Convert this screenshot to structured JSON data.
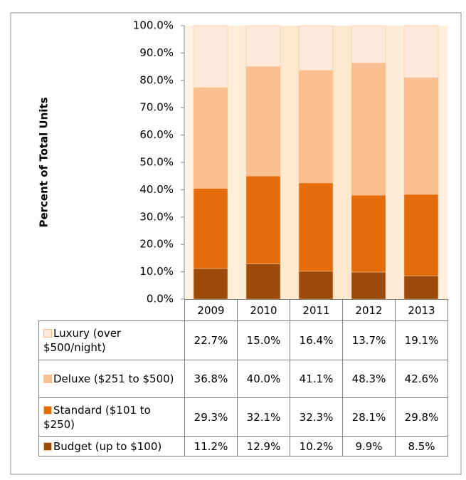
{
  "chart_data": {
    "type": "stacked_bar",
    "y_axis_label": "Percent of Total Units",
    "categories": [
      "2009",
      "2010",
      "2011",
      "2012",
      "2013"
    ],
    "series": [
      {
        "name": "Luxury (over $500/night)",
        "color": "#fde9d9",
        "values": [
          22.7,
          15.0,
          16.4,
          13.7,
          19.1
        ],
        "value_labels": [
          "22.7%",
          "15.0%",
          "16.4%",
          "13.7%",
          "19.1%"
        ]
      },
      {
        "name": "Deluxe ($251 to $500)",
        "color": "#fac090",
        "values": [
          36.8,
          40.0,
          41.1,
          48.3,
          42.6
        ],
        "value_labels": [
          "36.8%",
          "40.0%",
          "41.1%",
          "48.3%",
          "42.6%"
        ]
      },
      {
        "name": "Standard ($101 to $250)",
        "color": "#e46c0a",
        "values": [
          29.3,
          32.1,
          32.3,
          28.1,
          29.8
        ],
        "value_labels": [
          "29.3%",
          "32.1%",
          "32.3%",
          "28.1%",
          "29.8%"
        ]
      },
      {
        "name": "Budget (up to $100)",
        "color": "#9c4a0c",
        "values": [
          11.2,
          12.9,
          10.2,
          9.9,
          8.5
        ],
        "value_labels": [
          "11.2%",
          "12.9%",
          "10.2%",
          "9.9%",
          "8.5%"
        ]
      }
    ],
    "ylim": [
      0,
      100
    ],
    "yticks": [
      {
        "value": 0,
        "label": "0.0%"
      },
      {
        "value": 10,
        "label": "10.0%"
      },
      {
        "value": 20,
        "label": "20.0%"
      },
      {
        "value": 30,
        "label": "30.0%"
      },
      {
        "value": 40,
        "label": "40.0%"
      },
      {
        "value": 50,
        "label": "50.0%"
      },
      {
        "value": 60,
        "label": "60.0%"
      },
      {
        "value": 70,
        "label": "70.0%"
      },
      {
        "value": 80,
        "label": "80.0%"
      },
      {
        "value": 90,
        "label": "90.0%"
      },
      {
        "value": 100,
        "label": "100.0%"
      }
    ]
  }
}
